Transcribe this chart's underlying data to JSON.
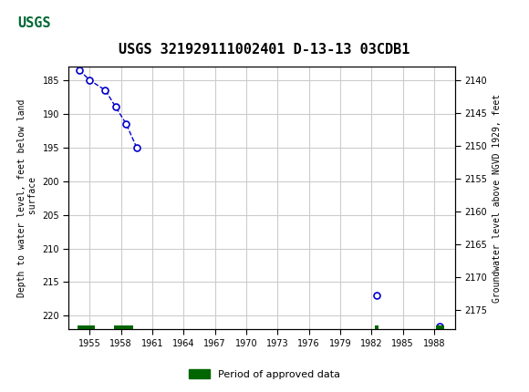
{
  "title": "USGS 321929111002401 D-13-13 03CDB1",
  "xlabel": "",
  "ylabel_left": "Depth to water level, feet below land\n surface",
  "ylabel_right": "Groundwater level above NGVD 1929, feet",
  "ylim_left": [
    183,
    222
  ],
  "ylim_right": [
    2138,
    2178
  ],
  "xlim": [
    1953,
    1990
  ],
  "xticks": [
    1955,
    1958,
    1961,
    1964,
    1967,
    1970,
    1973,
    1976,
    1979,
    1982,
    1985,
    1988
  ],
  "yticks_left": [
    185,
    190,
    195,
    200,
    205,
    210,
    215,
    220
  ],
  "yticks_right": [
    2140,
    2145,
    2150,
    2155,
    2160,
    2165,
    2170,
    2175
  ],
  "data_x": [
    1954.0,
    1955.0,
    1956.5,
    1957.5,
    1958.5,
    1959.5,
    1982.5,
    1988.5
  ],
  "data_y": [
    183.5,
    185.0,
    186.5,
    189.0,
    191.5,
    195.0,
    217.0,
    221.5
  ],
  "approved_periods": [
    [
      1953.8,
      1955.5
    ],
    [
      1957.3,
      1959.2
    ],
    [
      1982.3,
      1982.7
    ],
    [
      1988.2,
      1989.0
    ]
  ],
  "point_color": "#0000cc",
  "line_color": "#0000cc",
  "approved_color": "#006600",
  "background_color": "#ffffff",
  "header_color": "#006633",
  "grid_color": "#cccccc",
  "usgs_logo_color": "#006633"
}
